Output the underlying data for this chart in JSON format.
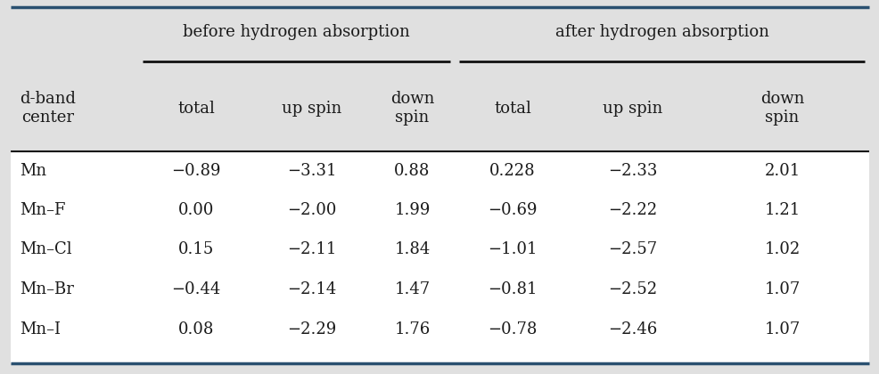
{
  "rows": [
    [
      "Mn",
      "−0.89",
      "−3.31",
      "0.88",
      "0.228",
      "−2.33",
      "2.01"
    ],
    [
      "Mn–F",
      "0.00",
      "−2.00",
      "1.99",
      "−0.69",
      "−2.22",
      "1.21"
    ],
    [
      "Mn–Cl",
      "0.15",
      "−2.11",
      "1.84",
      "−1.01",
      "−2.57",
      "1.02"
    ],
    [
      "Mn–Br",
      "−0.44",
      "−2.14",
      "1.47",
      "−0.81",
      "−2.52",
      "1.07"
    ],
    [
      "Mn–I",
      "0.08",
      "−2.29",
      "1.76",
      "−0.78",
      "−2.46",
      "1.07"
    ]
  ],
  "col_header_row2": [
    "d-band\ncenter",
    "total",
    "up spin",
    "down\nspin",
    "total",
    "up spin",
    "down\nspin"
  ],
  "header_bg": "#e0e0e0",
  "data_bg": "#ffffff",
  "text_color": "#1a1a1a",
  "font_size": 13,
  "header_font_size": 13,
  "top_border_color": "#2a5070",
  "bottom_border_color": "#2a5070",
  "sep_line_color": "#111111",
  "underline_color": "#111111"
}
